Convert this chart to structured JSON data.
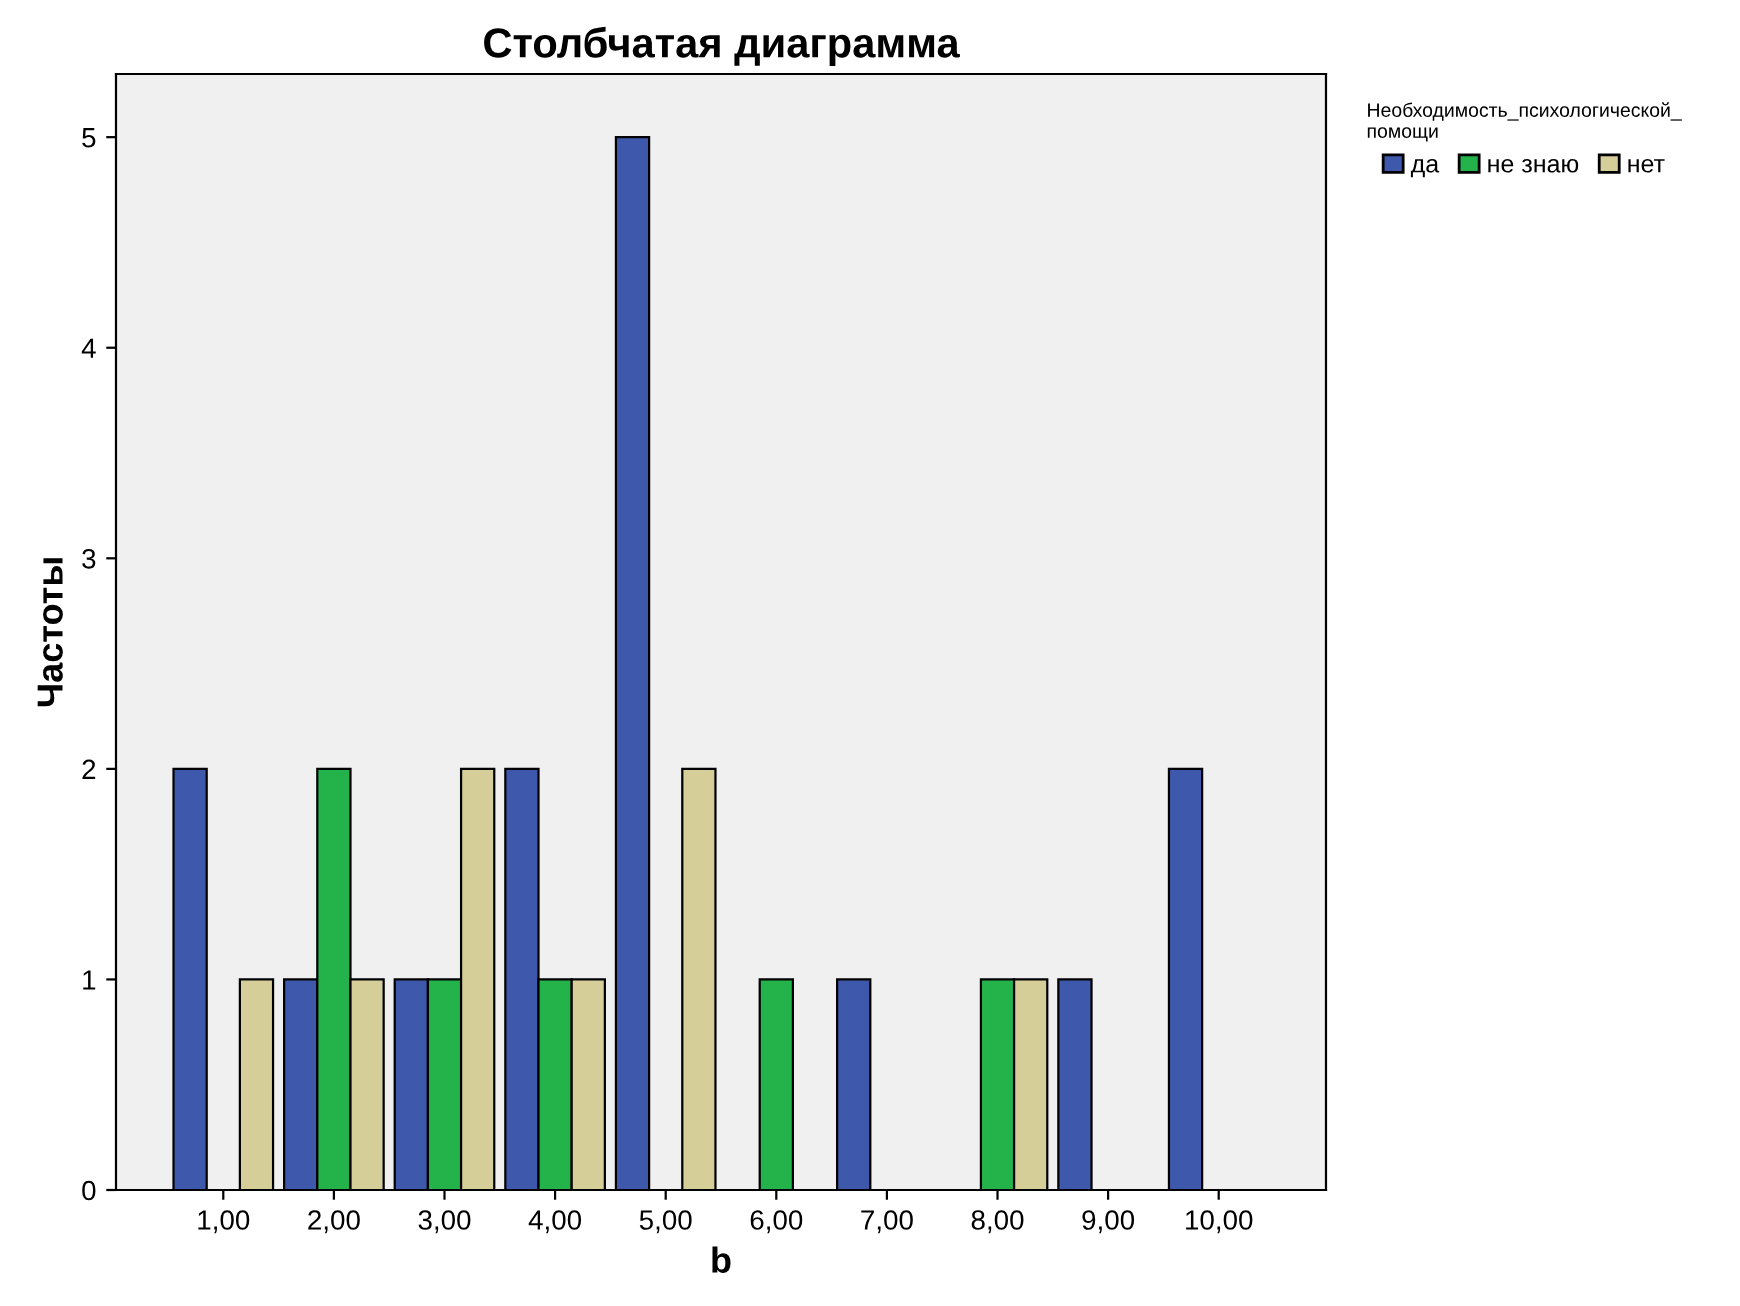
{
  "chart_data": {
    "type": "bar",
    "title": "Столбчатая диаграмма",
    "xlabel": "b",
    "ylabel": "Частоты",
    "legend_title": "Необходимость_психологической_\nпомощи",
    "legend": "top right",
    "grid": false,
    "categories": [
      "1,00",
      "2,00",
      "3,00",
      "4,00",
      "5,00",
      "6,00",
      "7,00",
      "8,00",
      "9,00",
      "10,00"
    ],
    "series": [
      {
        "name": "да",
        "color": "#3e58ac",
        "values": [
          2,
          1,
          1,
          2,
          5,
          0,
          1,
          0,
          1,
          2
        ]
      },
      {
        "name": "не знаю",
        "color": "#24b24a",
        "values": [
          0,
          2,
          1,
          1,
          0,
          1,
          0,
          1,
          0,
          0
        ]
      },
      {
        "name": "нет",
        "color": "#d5ce98",
        "values": [
          1,
          1,
          2,
          1,
          2,
          0,
          0,
          1,
          0,
          0
        ]
      }
    ],
    "ylim": [
      0,
      5.3
    ],
    "yticks": [
      0,
      1,
      2,
      3,
      4,
      5
    ]
  }
}
